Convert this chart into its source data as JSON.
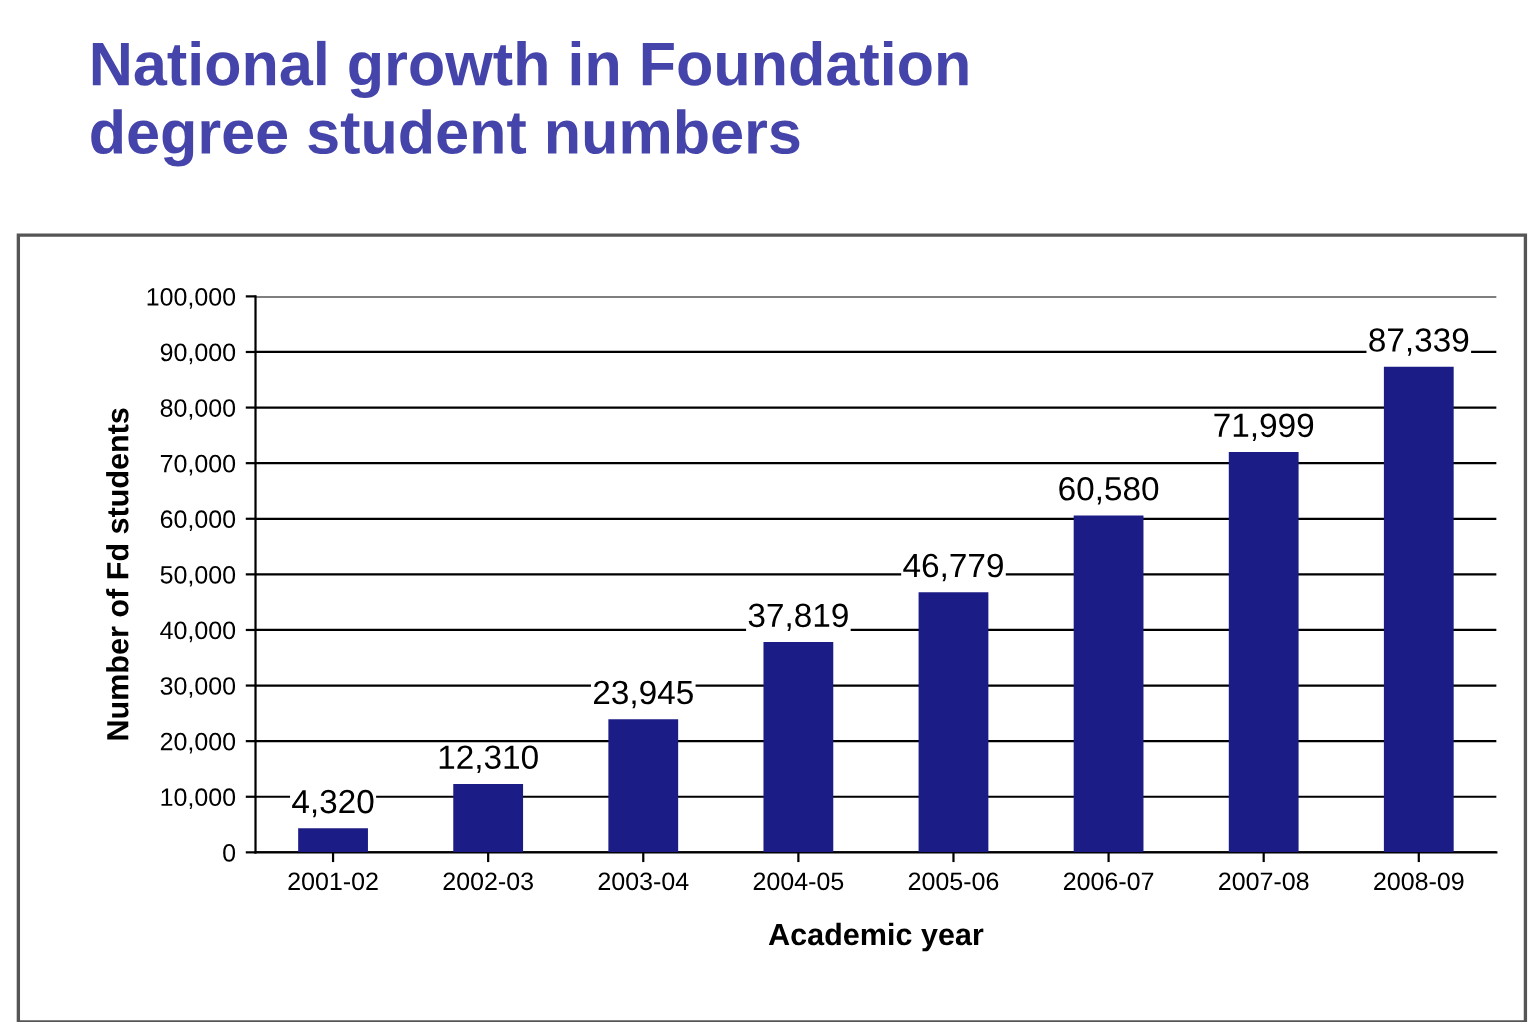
{
  "chart_data": {
    "type": "bar",
    "title": "National growth in Foundation\ndegree student numbers",
    "xlabel": "Academic year",
    "ylabel": "Number of Fd students",
    "categories": [
      "2001-02",
      "2002-03",
      "2003-04",
      "2004-05",
      "2005-06",
      "2006-07",
      "2007-08",
      "2008-09"
    ],
    "values": [
      4320,
      12310,
      23945,
      37819,
      46779,
      60580,
      71999,
      87339
    ],
    "value_labels": [
      "4,320",
      "12,310",
      "23,945",
      "37,819",
      "46,779",
      "60,580",
      "71,999",
      "87,339"
    ],
    "color": "#1c1c86",
    "ylim": [
      0,
      100000
    ],
    "yticks": [
      {
        "value": 0,
        "label": "0"
      },
      {
        "value": 10000,
        "label": "10,000"
      },
      {
        "value": 20000,
        "label": "20,000"
      },
      {
        "value": 30000,
        "label": "30,000"
      },
      {
        "value": 40000,
        "label": "40,000"
      },
      {
        "value": 50000,
        "label": "50,000"
      },
      {
        "value": 60000,
        "label": "60,000"
      },
      {
        "value": 70000,
        "label": "70,000"
      },
      {
        "value": 80000,
        "label": "80,000"
      },
      {
        "value": 90000,
        "label": "90,000"
      },
      {
        "value": 100000,
        "label": "100,000"
      }
    ],
    "grid": "y"
  }
}
